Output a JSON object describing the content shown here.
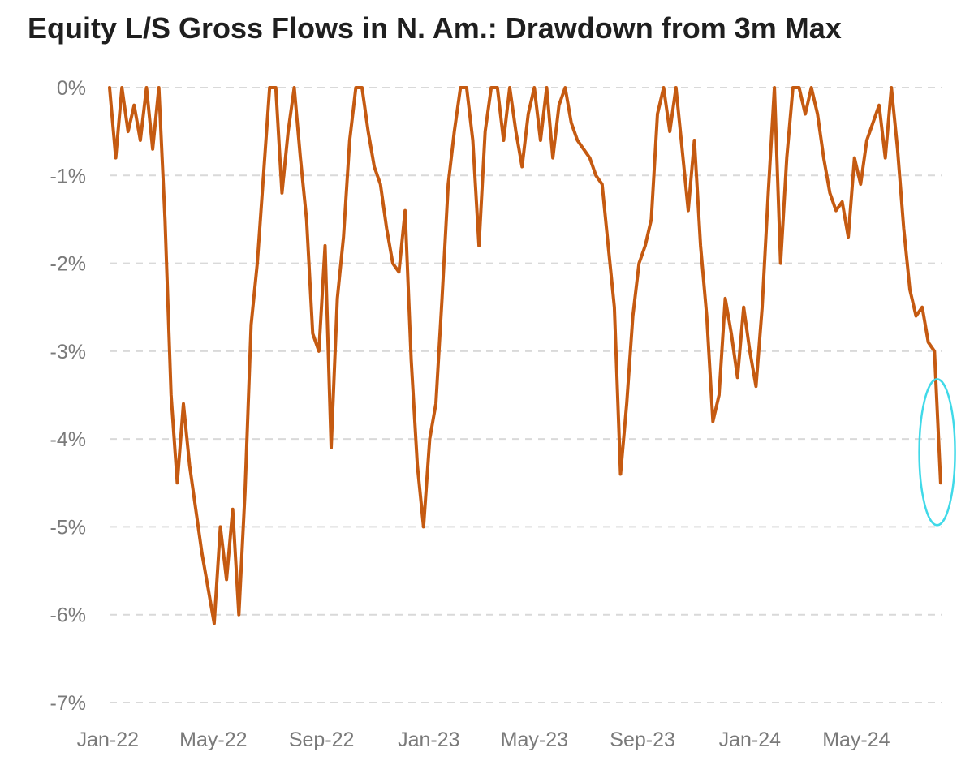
{
  "chart_data": {
    "type": "line",
    "title": "Equity L/S Gross Flows in N. Am.: Drawdown from 3m Max",
    "xlabel": "",
    "ylabel": "",
    "ylim": [
      -7,
      0
    ],
    "yticks": [
      0,
      -1,
      -2,
      -3,
      -4,
      -5,
      -6,
      -7
    ],
    "ytick_labels": [
      "0%",
      "-1%",
      "-2%",
      "-3%",
      "-4%",
      "-5%",
      "-6%",
      "-7%"
    ],
    "xlim": [
      "2022-01-03",
      "2024-08-06"
    ],
    "xticks": [
      "2022-01-01",
      "2022-05-01",
      "2022-09-01",
      "2023-01-01",
      "2023-05-01",
      "2023-09-01",
      "2024-01-01",
      "2024-05-01"
    ],
    "xtick_labels": [
      "Jan-22",
      "May-22",
      "Sep-22",
      "Jan-23",
      "May-23",
      "Sep-23",
      "Jan-24",
      "May-24"
    ],
    "grid": "horizontal-dashed",
    "line_color": "#c55a11",
    "annotation": {
      "type": "ellipse",
      "color": "#40d9e8",
      "x": "2024-08-01",
      "y": -4.15
    },
    "x": [
      "2022-01-03",
      "2022-01-10",
      "2022-01-17",
      "2022-01-24",
      "2022-01-31",
      "2022-02-07",
      "2022-02-14",
      "2022-02-21",
      "2022-02-28",
      "2022-03-07",
      "2022-03-14",
      "2022-03-21",
      "2022-03-28",
      "2022-04-04",
      "2022-04-11",
      "2022-04-18",
      "2022-04-25",
      "2022-05-02",
      "2022-05-09",
      "2022-05-16",
      "2022-05-23",
      "2022-05-30",
      "2022-06-06",
      "2022-06-13",
      "2022-06-20",
      "2022-06-27",
      "2022-07-04",
      "2022-07-11",
      "2022-07-18",
      "2022-07-25",
      "2022-08-01",
      "2022-08-08",
      "2022-08-15",
      "2022-08-22",
      "2022-08-29",
      "2022-09-05",
      "2022-09-12",
      "2022-09-19",
      "2022-09-26",
      "2022-10-03",
      "2022-10-10",
      "2022-10-17",
      "2022-10-24",
      "2022-10-31",
      "2022-11-07",
      "2022-11-14",
      "2022-11-21",
      "2022-11-28",
      "2022-12-05",
      "2022-12-12",
      "2022-12-19",
      "2022-12-26",
      "2023-01-02",
      "2023-01-09",
      "2023-01-16",
      "2023-01-23",
      "2023-01-30",
      "2023-02-06",
      "2023-02-13",
      "2023-02-20",
      "2023-02-27",
      "2023-03-06",
      "2023-03-13",
      "2023-03-20",
      "2023-03-27",
      "2023-04-03",
      "2023-04-10",
      "2023-04-17",
      "2023-04-24",
      "2023-05-01",
      "2023-05-08",
      "2023-05-15",
      "2023-05-22",
      "2023-05-29",
      "2023-06-05",
      "2023-06-12",
      "2023-06-19",
      "2023-06-26",
      "2023-07-03",
      "2023-07-10",
      "2023-07-17",
      "2023-07-24",
      "2023-07-31",
      "2023-08-07",
      "2023-08-14",
      "2023-08-21",
      "2023-08-28",
      "2023-09-04",
      "2023-09-11",
      "2023-09-18",
      "2023-09-25",
      "2023-10-02",
      "2023-10-09",
      "2023-10-16",
      "2023-10-23",
      "2023-10-30",
      "2023-11-06",
      "2023-11-13",
      "2023-11-20",
      "2023-11-27",
      "2023-12-04",
      "2023-12-11",
      "2023-12-18",
      "2023-12-25",
      "2024-01-01",
      "2024-01-08",
      "2024-01-15",
      "2024-01-22",
      "2024-01-29",
      "2024-02-05",
      "2024-02-12",
      "2024-02-19",
      "2024-02-26",
      "2024-03-04",
      "2024-03-11",
      "2024-03-18",
      "2024-03-25",
      "2024-04-01",
      "2024-04-08",
      "2024-04-15",
      "2024-04-22",
      "2024-04-29",
      "2024-05-06",
      "2024-05-13",
      "2024-05-20",
      "2024-05-27",
      "2024-06-03",
      "2024-06-10",
      "2024-06-17",
      "2024-06-24",
      "2024-07-01",
      "2024-07-08",
      "2024-07-15",
      "2024-07-22",
      "2024-07-29",
      "2024-08-05"
    ],
    "series": [
      {
        "values": [
          0,
          -0.8,
          0,
          -0.5,
          -0.2,
          -0.6,
          0,
          -0.7,
          0,
          -1.5,
          -3.5,
          -4.5,
          -3.6,
          -4.3,
          -4.8,
          -5.3,
          -5.7,
          -6.1,
          -5.0,
          -5.6,
          -4.8,
          -6.0,
          -4.6,
          -2.7,
          -2.0,
          -1.0,
          0,
          0,
          -1.2,
          -0.5,
          0,
          -0.8,
          -1.5,
          -2.8,
          -3.0,
          -1.8,
          -4.1,
          -2.4,
          -1.7,
          -0.6,
          0,
          0,
          -0.5,
          -0.9,
          -1.1,
          -1.6,
          -2.0,
          -2.1,
          -1.4,
          -3.1,
          -4.3,
          -5.0,
          -4.0,
          -3.6,
          -2.4,
          -1.1,
          -0.5,
          0,
          0,
          -0.6,
          -1.8,
          -0.5,
          0,
          0,
          -0.6,
          0,
          -0.5,
          -0.9,
          -0.3,
          0,
          -0.6,
          0,
          -0.8,
          -0.2,
          0,
          -0.4,
          -0.6,
          -0.7,
          -0.8,
          -1.0,
          -1.1,
          -1.8,
          -2.5,
          -4.4,
          -3.6,
          -2.6,
          -2.0,
          -1.8,
          -1.5,
          -0.3,
          0,
          -0.5,
          0,
          -0.7,
          -1.4,
          -0.6,
          -1.8,
          -2.6,
          -3.8,
          -3.5,
          -2.4,
          -2.8,
          -3.3,
          -2.5,
          -3.0,
          -3.4,
          -2.5,
          -1.2,
          0,
          -2.0,
          -0.8,
          0,
          0,
          -0.3,
          0,
          -0.3,
          -0.8,
          -1.2,
          -1.4,
          -1.3,
          -1.7,
          -0.8,
          -1.1,
          -0.6,
          -0.4,
          -0.2,
          -0.8,
          0,
          -0.7,
          -1.6,
          -2.3,
          -2.6,
          -2.5,
          -2.9,
          -3.0,
          -4.5
        ]
      }
    ]
  }
}
